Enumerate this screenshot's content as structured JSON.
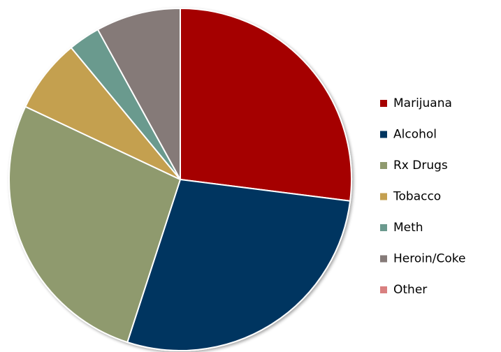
{
  "chart_data": {
    "type": "pie",
    "categories": [
      "Marijuana",
      "Alcohol",
      "Rx Drugs",
      "Tobacco",
      "Meth",
      "Heroin/Coke",
      "Other"
    ],
    "values": [
      27,
      28,
      27,
      7,
      3,
      8,
      0
    ],
    "colors": [
      "#a50000",
      "#003660",
      "#8f9a6e",
      "#c4a050",
      "#6b9a8e",
      "#857a78",
      "#d98080"
    ],
    "legend": "right"
  }
}
